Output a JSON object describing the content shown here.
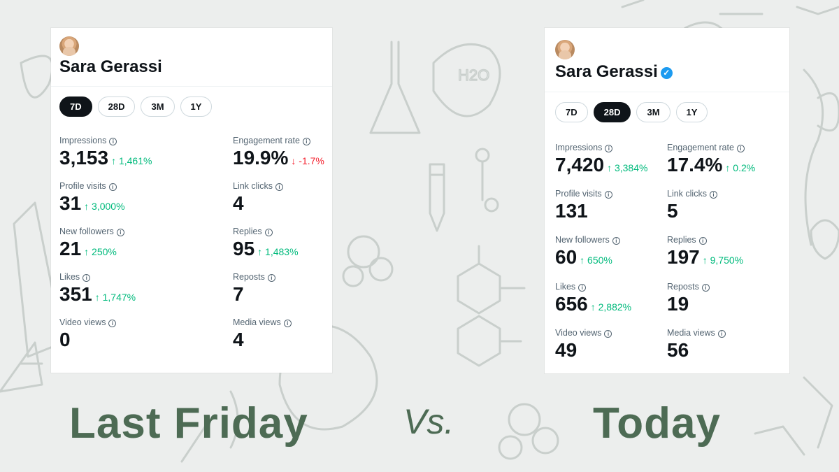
{
  "background": {
    "color": "#eceeed",
    "doodle_color": "#c9cfcc",
    "theme": "chemistry-doodles"
  },
  "colors": {
    "positive": "#00ba7c",
    "negative": "#f4212e",
    "caption": "#4d6b54"
  },
  "left_card": {
    "name": "Sara Gerassi",
    "verified": false,
    "tabs": [
      {
        "label": "7D",
        "active": true
      },
      {
        "label": "28D",
        "active": false
      },
      {
        "label": "3M",
        "active": false
      },
      {
        "label": "1Y",
        "active": false
      }
    ],
    "metrics": [
      {
        "label": "Impressions",
        "value": "3,153",
        "delta": "↑ 1,461%",
        "dir": "up"
      },
      {
        "label": "Engagement rate",
        "value": "19.9%",
        "delta": "↓ -1.7%",
        "dir": "down"
      },
      {
        "label": "Profile visits",
        "value": "31",
        "delta": "↑ 3,000%",
        "dir": "up"
      },
      {
        "label": "Link clicks",
        "value": "4",
        "delta": "",
        "dir": ""
      },
      {
        "label": "New followers",
        "value": "21",
        "delta": "↑ 250%",
        "dir": "up"
      },
      {
        "label": "Replies",
        "value": "95",
        "delta": "↑ 1,483%",
        "dir": "up"
      },
      {
        "label": "Likes",
        "value": "351",
        "delta": "↑ 1,747%",
        "dir": "up"
      },
      {
        "label": "Reposts",
        "value": "7",
        "delta": "",
        "dir": ""
      },
      {
        "label": "Video views",
        "value": "0",
        "delta": "",
        "dir": ""
      },
      {
        "label": "Media views",
        "value": "4",
        "delta": "",
        "dir": ""
      }
    ]
  },
  "right_card": {
    "name": "Sara Gerassi",
    "verified": true,
    "tabs": [
      {
        "label": "7D",
        "active": false
      },
      {
        "label": "28D",
        "active": true
      },
      {
        "label": "3M",
        "active": false
      },
      {
        "label": "1Y",
        "active": false
      }
    ],
    "metrics": [
      {
        "label": "Impressions",
        "value": "7,420",
        "delta": "↑ 3,384%",
        "dir": "up"
      },
      {
        "label": "Engagement rate",
        "value": "17.4%",
        "delta": "↑ 0.2%",
        "dir": "up"
      },
      {
        "label": "Profile visits",
        "value": "131",
        "delta": "",
        "dir": ""
      },
      {
        "label": "Link clicks",
        "value": "5",
        "delta": "",
        "dir": ""
      },
      {
        "label": "New followers",
        "value": "60",
        "delta": "↑ 650%",
        "dir": "up"
      },
      {
        "label": "Replies",
        "value": "197",
        "delta": "↑ 9,750%",
        "dir": "up"
      },
      {
        "label": "Likes",
        "value": "656",
        "delta": "↑ 2,882%",
        "dir": "up"
      },
      {
        "label": "Reposts",
        "value": "19",
        "delta": "",
        "dir": ""
      },
      {
        "label": "Video views",
        "value": "49",
        "delta": "",
        "dir": ""
      },
      {
        "label": "Media views",
        "value": "56",
        "delta": "",
        "dir": ""
      }
    ]
  },
  "captions": {
    "left": "Last Friday",
    "middle": "Vs.",
    "right": "Today"
  }
}
